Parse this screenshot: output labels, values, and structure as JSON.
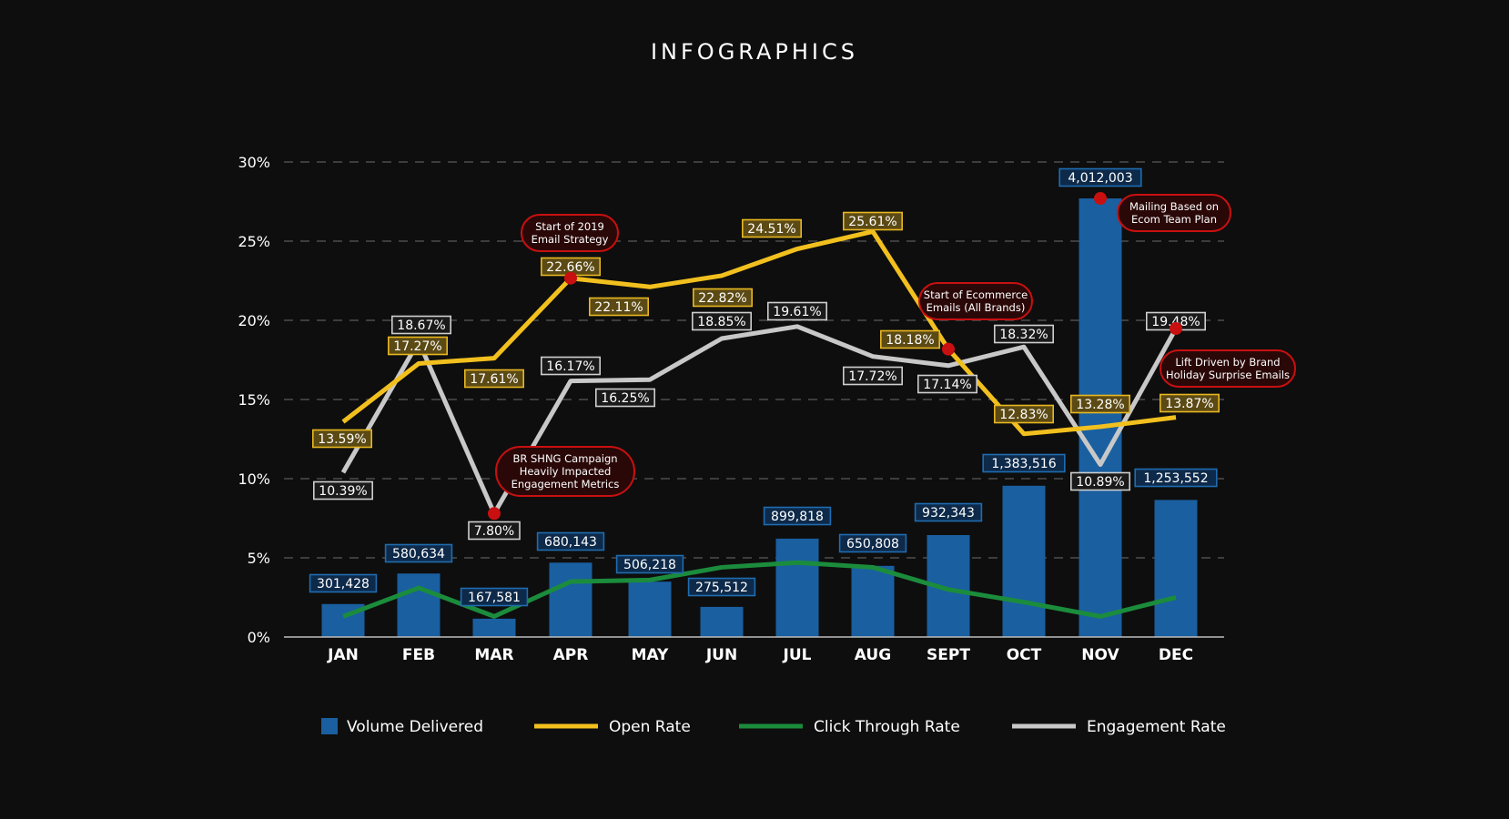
{
  "chart_data": {
    "type": "bar",
    "title": "INFOGRAPHICS",
    "categories": [
      "JAN",
      "FEB",
      "MAR",
      "APR",
      "MAY",
      "JUN",
      "JUL",
      "AUG",
      "SEPT",
      "OCT",
      "NOV",
      "DEC"
    ],
    "ylim": [
      0,
      30
    ],
    "yticks": [
      "0%",
      "5%",
      "10%",
      "15%",
      "20%",
      "25%",
      "30%"
    ],
    "grid": true,
    "legend_position": "bottom",
    "volume": {
      "name": "Volume Delivered",
      "color": "#1a5fa0",
      "values": [
        301428,
        580634,
        167581,
        680143,
        506218,
        275512,
        899818,
        650808,
        932343,
        1383516,
        4012003,
        1253552
      ],
      "labels": [
        "301,428",
        "580,634",
        "167,581",
        "680,143",
        "506,218",
        "275,512",
        "899,818",
        "650,808",
        "932,343",
        "1,383,516",
        "4,012,003",
        "1,253,552"
      ]
    },
    "series": [
      {
        "name": "Open Rate",
        "type": "line",
        "color": "#f2c01e",
        "values": [
          13.59,
          17.27,
          17.61,
          22.66,
          22.11,
          22.82,
          24.51,
          25.61,
          18.18,
          12.83,
          13.28,
          13.87
        ],
        "labels": [
          "13.59%",
          "17.27%",
          "17.61%",
          "22.66%",
          "22.11%",
          "22.82%",
          "24.51%",
          "25.61%",
          "18.18%",
          "12.83%",
          "13.28%",
          "13.87%"
        ]
      },
      {
        "name": "Click Through Rate",
        "type": "line",
        "color": "#1b8c3c",
        "values": [
          1.3,
          3.1,
          1.3,
          3.5,
          3.6,
          4.4,
          4.7,
          4.4,
          3.0,
          2.2,
          1.3,
          2.5
        ]
      },
      {
        "name": "Engagement Rate",
        "type": "line",
        "color": "#c8c8c8",
        "values": [
          10.39,
          18.67,
          7.8,
          16.17,
          16.25,
          18.85,
          19.61,
          17.72,
          17.14,
          18.32,
          10.89,
          19.48
        ],
        "labels": [
          "10.39%",
          "18.67%",
          "7.80%",
          "16.17%",
          "16.25%",
          "18.85%",
          "19.61%",
          "17.72%",
          "17.14%",
          "18.32%",
          "10.89%",
          "19.48%"
        ]
      }
    ],
    "annotations": [
      {
        "lines": [
          "Start of 2019",
          "Email Strategy"
        ],
        "month": 3,
        "series": "Open Rate"
      },
      {
        "lines": [
          "BR SHNG Campaign",
          "Heavily Impacted",
          "Engagement Metrics"
        ],
        "month": 2,
        "series": "Engagement Rate"
      },
      {
        "lines": [
          "Start of Ecommerce",
          "Emails (All Brands)"
        ],
        "month": 8,
        "series": "Open Rate"
      },
      {
        "lines": [
          "Mailing Based on",
          "Ecom Team Plan"
        ],
        "month": 10,
        "series": "Volume Delivered"
      },
      {
        "lines": [
          "Lift Driven by Brand",
          "Holiday Surprise Emails"
        ],
        "month": 11,
        "series": "Engagement Rate"
      }
    ]
  }
}
